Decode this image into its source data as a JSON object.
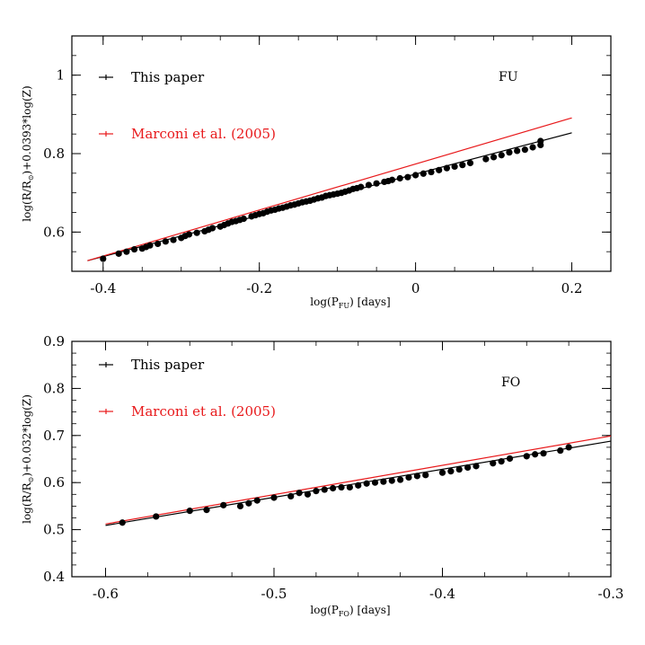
{
  "chart_data": [
    {
      "type": "scatter",
      "panel_label": "FU",
      "xlabel_parts": [
        "log(P",
        "FU",
        ") [days]"
      ],
      "ylabel_parts": [
        "log(R/R",
        "⊙",
        ")+0.0393*log(Z)"
      ],
      "xlim": [
        -0.44,
        0.25
      ],
      "ylim": [
        0.5,
        1.1
      ],
      "xticks": [
        -0.4,
        -0.2,
        0,
        0.2
      ],
      "xtick_labels": [
        "-0.4",
        "-0.2",
        "0",
        "0.2"
      ],
      "yticks": [
        0.6,
        0.8,
        1.0
      ],
      "ytick_labels": [
        "0.6",
        "0.8",
        "1"
      ],
      "legend_placement": "top-left",
      "series": [
        {
          "name": "This paper",
          "color": "#000000",
          "line": {
            "x": [
              -0.42,
              0.2
            ],
            "y": [
              0.527,
              0.853
            ]
          }
        },
        {
          "name": "Marconi et al. (2005)",
          "color": "#e8191b",
          "line": {
            "x": [
              -0.42,
              0.2
            ],
            "y": [
              0.527,
              0.891
            ]
          }
        }
      ],
      "points": {
        "x": [
          -0.4,
          -0.38,
          -0.37,
          -0.36,
          -0.35,
          -0.345,
          -0.34,
          -0.33,
          -0.32,
          -0.31,
          -0.3,
          -0.295,
          -0.29,
          -0.28,
          -0.27,
          -0.265,
          -0.26,
          -0.25,
          -0.245,
          -0.24,
          -0.235,
          -0.23,
          -0.225,
          -0.22,
          -0.21,
          -0.205,
          -0.2,
          -0.195,
          -0.19,
          -0.185,
          -0.18,
          -0.175,
          -0.17,
          -0.165,
          -0.16,
          -0.155,
          -0.15,
          -0.145,
          -0.14,
          -0.135,
          -0.13,
          -0.125,
          -0.12,
          -0.115,
          -0.11,
          -0.105,
          -0.1,
          -0.095,
          -0.09,
          -0.085,
          -0.08,
          -0.075,
          -0.07,
          -0.06,
          -0.05,
          -0.04,
          -0.035,
          -0.03,
          -0.02,
          -0.01,
          0.0,
          0.01,
          0.02,
          0.03,
          0.04,
          0.05,
          0.06,
          0.07,
          0.09,
          0.1,
          0.11,
          0.12,
          0.13,
          0.14,
          0.15,
          0.16,
          0.16
        ],
        "y": [
          0.532,
          0.545,
          0.55,
          0.556,
          0.558,
          0.562,
          0.566,
          0.57,
          0.576,
          0.58,
          0.585,
          0.59,
          0.594,
          0.598,
          0.602,
          0.606,
          0.61,
          0.614,
          0.618,
          0.622,
          0.626,
          0.628,
          0.631,
          0.634,
          0.64,
          0.643,
          0.646,
          0.648,
          0.652,
          0.655,
          0.657,
          0.66,
          0.662,
          0.665,
          0.668,
          0.67,
          0.673,
          0.676,
          0.678,
          0.68,
          0.683,
          0.686,
          0.688,
          0.692,
          0.694,
          0.696,
          0.698,
          0.7,
          0.703,
          0.706,
          0.71,
          0.712,
          0.715,
          0.72,
          0.724,
          0.728,
          0.73,
          0.733,
          0.737,
          0.74,
          0.745,
          0.749,
          0.753,
          0.758,
          0.763,
          0.767,
          0.771,
          0.776,
          0.786,
          0.791,
          0.796,
          0.803,
          0.807,
          0.81,
          0.816,
          0.822,
          0.832
        ]
      }
    },
    {
      "type": "scatter",
      "panel_label": "FO",
      "xlabel_parts": [
        "log(P",
        "FO",
        ") [days]"
      ],
      "ylabel_parts": [
        "log(R/R",
        "⊙",
        ")+0.032*log(Z)"
      ],
      "xlim": [
        -0.62,
        -0.3
      ],
      "ylim": [
        0.4,
        0.9
      ],
      "xticks": [
        -0.6,
        -0.5,
        -0.4,
        -0.3
      ],
      "xtick_labels": [
        "-0.6",
        "-0.5",
        "-0.4",
        "-0.3"
      ],
      "yticks": [
        0.4,
        0.5,
        0.6,
        0.7,
        0.8,
        0.9
      ],
      "ytick_labels": [
        "0.4",
        "0.5",
        "0.6",
        "0.7",
        "0.8",
        "0.9"
      ],
      "legend_placement": "top-left",
      "series": [
        {
          "name": "This paper",
          "color": "#000000",
          "line": {
            "x": [
              -0.6,
              -0.3
            ],
            "y": [
              0.509,
              0.688
            ]
          }
        },
        {
          "name": "Marconi et al. (2005)",
          "color": "#e8191b",
          "line": {
            "x": [
              -0.6,
              -0.3
            ],
            "y": [
              0.512,
              0.699
            ]
          }
        }
      ],
      "points": {
        "x": [
          -0.59,
          -0.57,
          -0.55,
          -0.54,
          -0.53,
          -0.52,
          -0.515,
          -0.51,
          -0.5,
          -0.49,
          -0.485,
          -0.48,
          -0.475,
          -0.47,
          -0.465,
          -0.46,
          -0.455,
          -0.45,
          -0.445,
          -0.44,
          -0.435,
          -0.43,
          -0.425,
          -0.42,
          -0.415,
          -0.41,
          -0.4,
          -0.395,
          -0.39,
          -0.385,
          -0.38,
          -0.37,
          -0.365,
          -0.36,
          -0.35,
          -0.345,
          -0.34,
          -0.33,
          -0.325
        ],
        "y": [
          0.515,
          0.528,
          0.54,
          0.542,
          0.552,
          0.55,
          0.556,
          0.562,
          0.568,
          0.571,
          0.578,
          0.575,
          0.582,
          0.585,
          0.588,
          0.59,
          0.59,
          0.594,
          0.598,
          0.6,
          0.602,
          0.604,
          0.606,
          0.611,
          0.614,
          0.616,
          0.621,
          0.624,
          0.628,
          0.632,
          0.635,
          0.641,
          0.645,
          0.651,
          0.656,
          0.66,
          0.662,
          0.668,
          0.675
        ]
      }
    }
  ]
}
